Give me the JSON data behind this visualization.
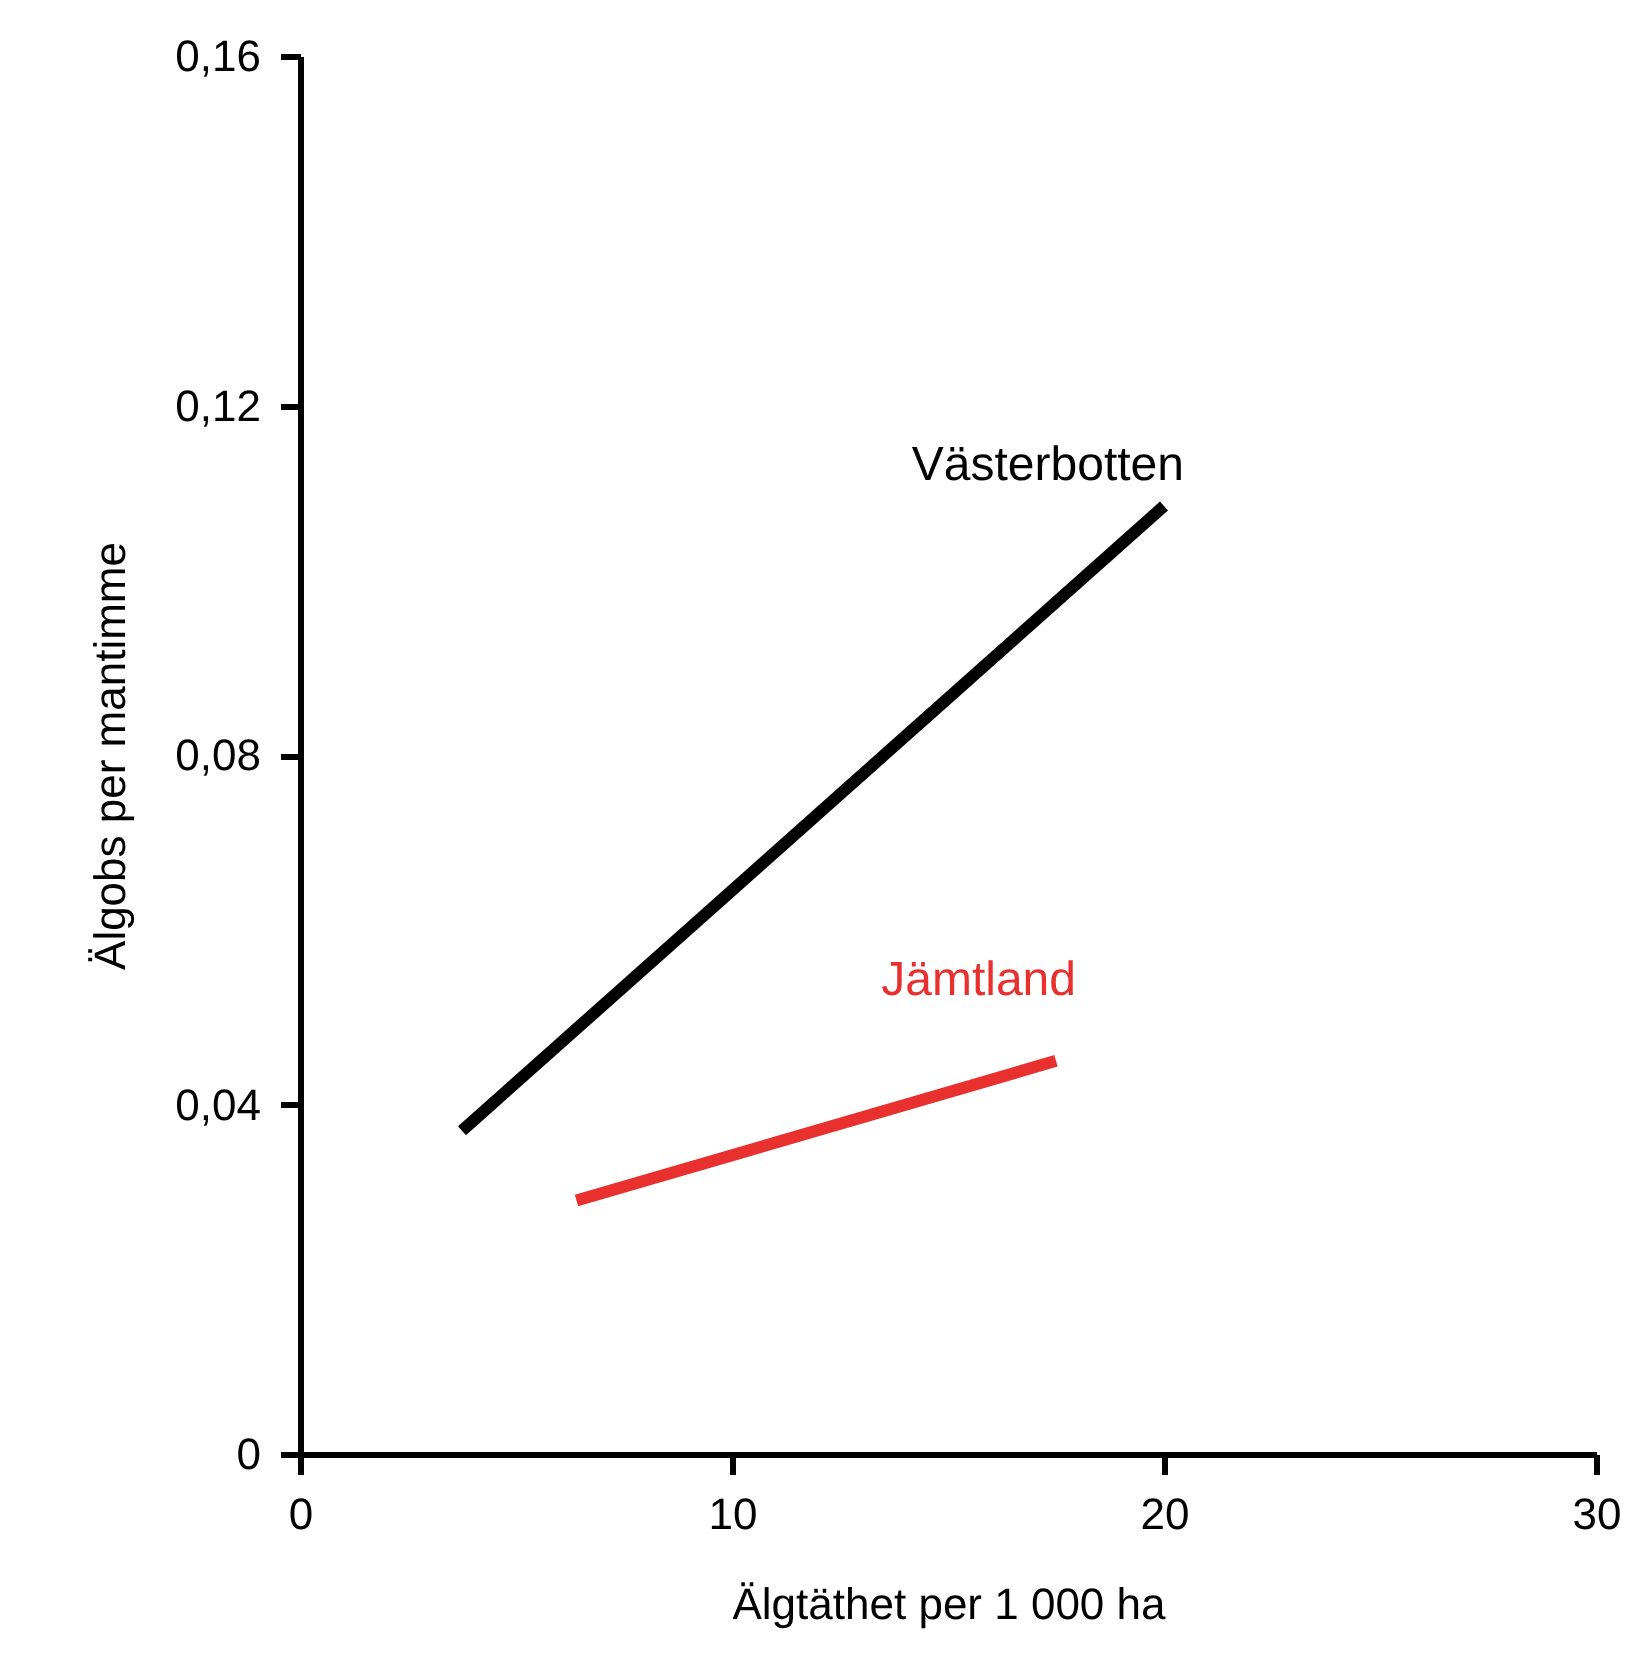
{
  "chart_data": {
    "type": "line",
    "xlabel": "Älgtäthet per 1 000 ha",
    "ylabel": "Älgobs per mantimme",
    "xlim": [
      0,
      30
    ],
    "xticks": [
      0,
      10,
      20,
      30
    ],
    "ylim": [
      0,
      0.16
    ],
    "yticks": [
      0,
      {
        "value": 0.04,
        "label": "0,04"
      },
      {
        "value": 0.08,
        "label": "0,08"
      },
      {
        "value": 0.12,
        "label": "0,12"
      },
      {
        "value": 0.16,
        "label": "0,16"
      }
    ],
    "grid": false,
    "marker": "none",
    "line_style": "solid",
    "series": [
      {
        "name": "Västerbotten",
        "color": "#000000",
        "x": [
          3.75,
          20
        ],
        "values": [
          0.037,
          0.1085
        ]
      },
      {
        "name": "Jämtland",
        "color": "#e8312f",
        "x": [
          6.4,
          17.5
        ],
        "values": [
          0.029,
          0.045
        ]
      }
    ]
  }
}
